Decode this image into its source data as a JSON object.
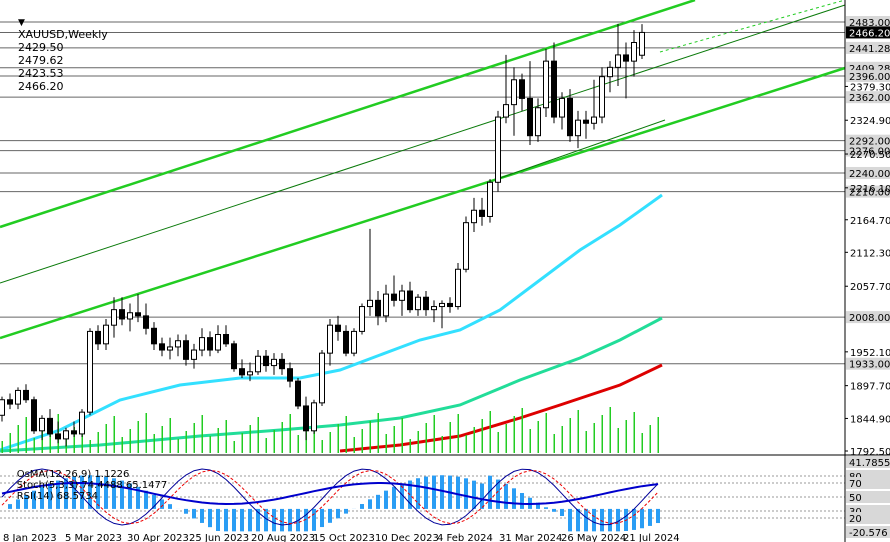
{
  "header": {
    "symbol": "XAUUSD,Weekly",
    "open": "2429.50",
    "high": "2479.62",
    "low": "2423.53",
    "close": "2466.20",
    "collapse_icon": "triangle-down-icon"
  },
  "indicator_header": {
    "osma": "OsMA(12,26,9) 1.1226",
    "stoch": "Stoch(5,3,3) 74.4488 65.1477",
    "rsi": "RSI(14) 68.5734"
  },
  "price_labels": [
    {
      "text": "2483.00",
      "y": 2483.0,
      "highlight": false
    },
    {
      "text": "2466.20",
      "y": 2466.2,
      "highlight": true
    },
    {
      "text": "2441.28",
      "y": 2441.28,
      "highlight": false
    },
    {
      "text": "2409.28",
      "y": 2409.28,
      "highlight": false
    },
    {
      "text": "2396.00",
      "y": 2396.0,
      "highlight": false
    },
    {
      "text": "2362.00",
      "y": 2362.0,
      "highlight": false
    },
    {
      "text": "2292.00",
      "y": 2292.0,
      "highlight": false
    },
    {
      "text": "2276.00",
      "y": 2276.0,
      "highlight": false
    },
    {
      "text": "2240.00",
      "y": 2240.0,
      "highlight": false
    },
    {
      "text": "2210.00",
      "y": 2210.0,
      "highlight": false
    },
    {
      "text": "2008.00",
      "y": 2008.0,
      "highlight": false
    },
    {
      "text": "1933.00",
      "y": 1933.0,
      "highlight": false
    }
  ],
  "price_ticks": [
    "2379.30",
    "2324.90",
    "2270.50",
    "2216.10",
    "2164.70",
    "2112.30",
    "2057.70",
    "1952.10",
    "1897.70",
    "1844.90",
    "1792.50"
  ],
  "sub_labels": [
    "41.7855",
    "80",
    "70",
    "50",
    "30",
    "20",
    "-20.576"
  ],
  "sub_label_values": [
    41.7855,
    80,
    70,
    50,
    30,
    20,
    -20.576
  ],
  "date_labels": [
    "8 Jan 2023",
    "5 Mar 2023",
    "30 Apr 2023",
    "25 Jun 2023",
    "20 Aug 2023",
    "15 Oct 2023",
    "10 Dec 2023",
    "4 Feb 2024",
    "31 Mar 2024",
    "26 May 2024",
    "21 Jul 2024"
  ],
  "colors": {
    "bg": "#ffffff",
    "channel": "#22cc22",
    "ma_fast": "#33e0ff",
    "ma_mid": "#22dd99",
    "ma_slow": "#dd0000",
    "volume": "#22cc22",
    "osma_bar": "#2a9df4",
    "stoch_main": "#000099",
    "stoch_signal": "#ee0000",
    "rsi": "#0000cc",
    "candle": "#000000"
  }
}
